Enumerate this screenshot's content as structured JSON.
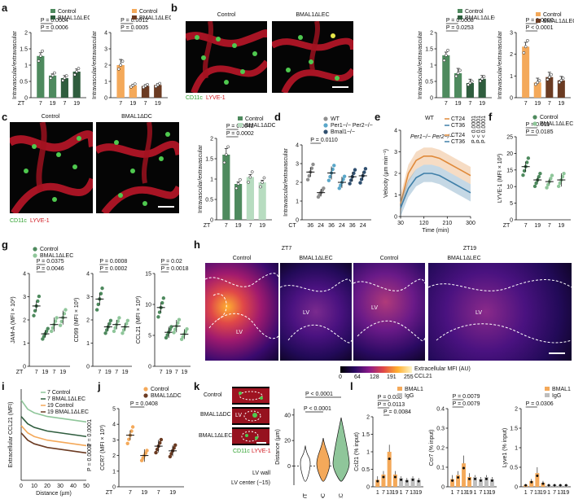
{
  "colors": {
    "control_green": "#4e8a5e",
    "bmal_lec_green": "#8fc69a",
    "dark_green": "#2f5d3e",
    "light_green": "#b7dcc0",
    "control_orange": "#f4a95a",
    "bmal_dc_brown": "#6b3b22",
    "wt_gray": "#8f8f8f",
    "per_blue": "#5aa7c9",
    "bmal_slate": "#2f4f6f",
    "ct24_orange": "#e08a3a",
    "ct36_blue": "#3f7fa8"
  },
  "panel_labels": {
    "a": "a",
    "b": "b",
    "c": "c",
    "d": "d",
    "e": "e",
    "f": "f",
    "g": "g",
    "h": "h",
    "i": "i",
    "j": "j",
    "k": "k",
    "l": "l"
  },
  "common": {
    "ylabel_iv": "Intravascular/extravascular",
    "zt": "ZT",
    "ct": "CT",
    "control": "Control",
    "bmal_lec": "BMAL1ΔLEC",
    "bmal_dc": "BMAL1ΔDC",
    "cd11c": "CD11c",
    "lyve1": "LYVE-1",
    "lv": "LV"
  },
  "micro_text": {
    "b_control": "Control",
    "b_bmal": "BMAL1ΔLEC",
    "c_control": "Control",
    "c_bmal": "BMAL1ΔDC",
    "h_zt7": "ZT7",
    "h_zt19": "ZT19",
    "h_control1": "Control",
    "h_bmal1": "BMAL1ΔLEC",
    "h_control2": "Control",
    "h_bmal2": "BMAL1ΔLEC",
    "h_colorbar_label1": "Extracellular MFI (AU)",
    "h_colorbar_label2": "CCL21",
    "h_colorbar_ticks": [
      "0",
      "64",
      "128",
      "191",
      "255"
    ],
    "k_control": "Control",
    "k_bmal_dc": "BMAL1ΔDC",
    "k_bmal_lec": "BMAL1ΔLEC",
    "k_lv": "LV"
  },
  "chart_data": [
    {
      "id": "a1",
      "type": "bar",
      "ylabel": "Intravascular/extravascular",
      "ylim": [
        0,
        2.0
      ],
      "yticks": [
        0,
        0.5,
        1.0,
        1.5,
        2.0
      ],
      "xtick_labels": [
        "7",
        "19",
        "7",
        "19"
      ],
      "x_prefix": "ZT",
      "values": [
        1.28,
        0.68,
        0.6,
        0.8
      ],
      "errors": [
        0.1,
        0.05,
        0.08,
        0.08
      ],
      "legend": [
        "Control",
        "BMAL1ΔLEC"
      ],
      "pvalues": [
        "P = 0.0004",
        "P = 0.0006"
      ]
    },
    {
      "id": "a2",
      "type": "bar",
      "ylabel": "Intravascular/extravascular",
      "ylim": [
        0,
        4
      ],
      "yticks": [
        0,
        1,
        2,
        3,
        4
      ],
      "xtick_labels": [
        "7",
        "19",
        "7",
        "19"
      ],
      "values": [
        2.0,
        0.75,
        0.72,
        0.78
      ],
      "errors": [
        0.35,
        0.07,
        0.08,
        0.08
      ],
      "legend": [
        "Control",
        "BMAL1ΔLEC"
      ],
      "pvalues": [
        "P = 0.0012",
        "P = 0.0005"
      ]
    },
    {
      "id": "b1",
      "type": "bar",
      "ylabel": "Intravascular/extravascular",
      "ylim": [
        0,
        2.0
      ],
      "yticks": [
        0,
        0.5,
        1.0,
        1.5,
        2.0
      ],
      "xtick_labels": [
        "7",
        "19",
        "7",
        "19"
      ],
      "values": [
        1.3,
        0.75,
        0.45,
        0.58
      ],
      "errors": [
        0.1,
        0.15,
        0.12,
        0.1
      ],
      "legend": [
        "Control",
        "BMAL1ΔLEC"
      ],
      "pvalues": [
        "P = 0.0008",
        "P = 0.0253"
      ]
    },
    {
      "id": "b2",
      "type": "bar",
      "ylabel": "Intravascular/extravascular",
      "ylim": [
        0,
        3
      ],
      "yticks": [
        0,
        1,
        2,
        3
      ],
      "xtick_labels": [
        "7",
        "19",
        "7",
        "19"
      ],
      "values": [
        2.35,
        0.7,
        0.95,
        0.8
      ],
      "errors": [
        0.2,
        0.2,
        0.22,
        0.18
      ],
      "legend": [
        "Control",
        "BMAL1ΔLEC"
      ],
      "pvalues": [
        "P = 0.0007",
        "P < 0.0001"
      ]
    },
    {
      "id": "c1",
      "type": "bar",
      "ylabel": "Intravascular/extravascular",
      "ylim": [
        0,
        2.0
      ],
      "yticks": [
        0,
        0.5,
        1.0,
        1.5,
        2.0
      ],
      "xtick_labels": [
        "7",
        "19",
        "7",
        "19"
      ],
      "x_prefix": "ZT",
      "values": [
        1.6,
        0.88,
        1.05,
        0.92
      ],
      "errors": [
        0.15,
        0.05,
        0.06,
        0.05
      ],
      "legend": [
        "Control",
        "BMAL1ΔDC"
      ],
      "pvalues": [
        "P = 0.0042",
        "P = 0.0002"
      ]
    },
    {
      "id": "d",
      "type": "scatter",
      "ylabel": "Intravascular/extravascular",
      "ylim": [
        0,
        4
      ],
      "yticks": [
        0,
        1,
        2,
        3,
        4
      ],
      "xtick_labels": [
        "36",
        "24",
        "36",
        "24",
        "36",
        "24"
      ],
      "x_prefix": "CT",
      "values": [
        2.55,
        1.45,
        2.5,
        2.0,
        2.3,
        2.35
      ],
      "errors": [
        0.25,
        0.2,
        0.35,
        0.3,
        0.25,
        0.2
      ],
      "legend": [
        "WT",
        "Per1−/− Per2−/−",
        "Bmal1−/−"
      ],
      "pvalues": [
        "P = 0.0110"
      ]
    },
    {
      "id": "e",
      "type": "line",
      "xlabel": "Time (min)",
      "ylabel": "Velocity (µm min⁻¹)",
      "xlim": [
        30,
        300
      ],
      "ylim": [
        0,
        4
      ],
      "xticks": [
        30,
        120,
        210,
        300
      ],
      "yticks": [
        0,
        1,
        2,
        3,
        4
      ],
      "legend": [
        "CT24",
        "CT36",
        "CT24",
        "CT36"
      ],
      "group_labels": [
        "WT",
        "Per1−/− Per2−/−"
      ],
      "pvalues": [
        "P < 0.0001",
        "P < 0.0001",
        "P < 0.0001"
      ],
      "series": [
        {
          "name": "CT24",
          "x": [
            30,
            60,
            90,
            120,
            150,
            180,
            210,
            240,
            270,
            300
          ],
          "y": [
            0.6,
            2.0,
            2.6,
            2.8,
            2.8,
            2.7,
            2.5,
            2.3,
            2.1,
            1.9
          ]
        },
        {
          "name": "CT36",
          "x": [
            30,
            60,
            90,
            120,
            150,
            180,
            210,
            240,
            270,
            300
          ],
          "y": [
            0.4,
            1.3,
            1.8,
            2.0,
            2.0,
            1.9,
            1.7,
            1.5,
            1.3,
            1.1
          ]
        }
      ]
    },
    {
      "id": "f",
      "type": "scatter",
      "ylabel": "LYVE-1 (MFI × 10³)",
      "ylim": [
        0,
        25
      ],
      "yticks": [
        0,
        5,
        10,
        15,
        20,
        25
      ],
      "xtick_labels": [
        "7",
        "19",
        "7",
        "19"
      ],
      "x_prefix": "ZT",
      "values": [
        16.0,
        12.0,
        11.5,
        12.0
      ],
      "errors": [
        1.5,
        0.8,
        0.8,
        2.0
      ],
      "legend": [
        "Control",
        "BMAL1ΔLEC"
      ],
      "pvalues": [
        "P = 0.011",
        "P = 0.0185"
      ]
    },
    {
      "id": "g1",
      "type": "scatter",
      "ylabel": "JAM-A (MFI × 10³)",
      "ylim": [
        0,
        4
      ],
      "yticks": [
        0,
        1,
        2,
        3,
        4
      ],
      "xtick_labels": [
        "7",
        "19",
        "7",
        "19"
      ],
      "x_prefix": "ZT",
      "values": [
        2.6,
        1.4,
        1.8,
        2.1
      ],
      "errors": [
        0.2,
        0.15,
        0.3,
        0.3
      ],
      "legend": [
        "Control",
        "BMAL1ΔLEC"
      ],
      "pvalues": [
        "P = 0.0375",
        "P = 0.0046"
      ]
    },
    {
      "id": "g2",
      "type": "scatter",
      "ylabel": "CD99 (MFI × 10³)",
      "ylim": [
        0,
        4
      ],
      "yticks": [
        0,
        1,
        2,
        3,
        4
      ],
      "xtick_labels": [
        "7",
        "19",
        "7",
        "19"
      ],
      "values": [
        2.9,
        1.7,
        1.8,
        1.7
      ],
      "errors": [
        0.25,
        0.15,
        0.2,
        0.15
      ],
      "pvalues": [
        "P = 0.0008",
        "P = 0.0002"
      ]
    },
    {
      "id": "g3",
      "type": "scatter",
      "ylabel": "CCL21 (MFI × 10³)",
      "ylim": [
        0,
        15
      ],
      "yticks": [
        0,
        5,
        10,
        15
      ],
      "xtick_labels": [
        "7",
        "19",
        "7",
        "19"
      ],
      "values": [
        9.5,
        5.5,
        6.5,
        5.2
      ],
      "errors": [
        0.8,
        0.9,
        1.0,
        0.8
      ],
      "pvalues": [
        "P = 0.02",
        "P = 0.0018"
      ]
    },
    {
      "id": "i",
      "type": "line",
      "xlabel": "Distance (µm)",
      "ylabel": "Extracellular CCL21 (MFI)",
      "xlim": [
        0,
        50
      ],
      "ylim": [
        0,
        5
      ],
      "xticks": [
        0,
        10,
        20,
        30,
        40,
        50
      ],
      "pvalues": [
        "P = 0.0001",
        "P = 0.0001"
      ],
      "series": [
        {
          "name": "7 Control",
          "x": [
            0,
            5,
            10,
            20,
            30,
            40,
            50
          ],
          "y": [
            4.4,
            3.9,
            3.7,
            3.5,
            3.4,
            3.3,
            3.2
          ]
        },
        {
          "name": "7 BMAL1ΔLEC",
          "x": [
            0,
            5,
            10,
            20,
            30,
            40,
            50
          ],
          "y": [
            3.5,
            3.1,
            2.9,
            2.7,
            2.6,
            2.5,
            2.4
          ]
        },
        {
          "name": "19 Control",
          "x": [
            0,
            5,
            10,
            20,
            30,
            40,
            50
          ],
          "y": [
            3.0,
            2.6,
            2.4,
            2.2,
            2.1,
            2.0,
            1.9
          ]
        },
        {
          "name": "19 BMAL1ΔLEC",
          "x": [
            0,
            5,
            10,
            20,
            30,
            40,
            50
          ],
          "y": [
            2.6,
            2.2,
            2.0,
            1.8,
            1.7,
            1.6,
            1.5
          ]
        }
      ]
    },
    {
      "id": "j",
      "type": "scatter",
      "ylabel": "CCR7 (MFI × 10³)",
      "ylim": [
        0,
        5
      ],
      "yticks": [
        0,
        1,
        2,
        3,
        4,
        5
      ],
      "xtick_labels": [
        "7",
        "19",
        "7",
        "19"
      ],
      "x_prefix": "ZT",
      "values": [
        3.3,
        2.0,
        2.6,
        2.3
      ],
      "errors": [
        0.3,
        0.4,
        0.4,
        0.35
      ],
      "legend": [
        "Control",
        "BMAL1ΔDC"
      ],
      "pvalues": [
        "P = 0.0408"
      ]
    },
    {
      "id": "k",
      "type": "violin",
      "ylabel": "Distance (µm)",
      "ylim": [
        -15,
        45
      ],
      "yticks": [
        0,
        20,
        40
      ],
      "categories": [
        "WT",
        "cDC",
        "LEC"
      ],
      "ref_labels": [
        "LV wall",
        "LV center (−15)"
      ],
      "pvalues": [
        "P < 0.0001",
        "P < 0.0001"
      ]
    },
    {
      "id": "l1",
      "type": "bar",
      "ylabel": "Ccl21 (% input)",
      "ylim": [
        0,
        2.0
      ],
      "yticks": [
        0,
        0.5,
        1.0,
        1.5,
        2.0
      ],
      "xtick_labels": [
        "1",
        "7",
        "13",
        "19",
        "1",
        "7",
        "13",
        "19"
      ],
      "values": [
        0.2,
        0.35,
        1.0,
        0.35,
        0.25,
        0.2,
        0.25,
        0.2
      ],
      "errors": [
        0.1,
        0.1,
        0.2,
        0.1,
        0.05,
        0.05,
        0.05,
        0.05
      ],
      "legend": [
        "BMAL1",
        "IgG"
      ],
      "pvalues": [
        "P = 0.038",
        "P = 0.0113",
        "P = 0.0084"
      ]
    },
    {
      "id": "l2",
      "type": "bar",
      "ylabel": "Ccr7 (% input)",
      "ylim": [
        0,
        0.4
      ],
      "yticks": [
        0,
        0.1,
        0.2,
        0.3,
        0.4
      ],
      "xtick_labels": [
        "1",
        "7",
        "13",
        "19",
        "1",
        "7",
        "13",
        "19"
      ],
      "values": [
        0.04,
        0.06,
        0.12,
        0.05,
        0.05,
        0.04,
        0.05,
        0.04
      ],
      "errors": [
        0.02,
        0.02,
        0.04,
        0.02,
        0.01,
        0.01,
        0.01,
        0.01
      ],
      "pvalues": [
        "P = 0.0079",
        "P = 0.0079"
      ]
    },
    {
      "id": "l3",
      "type": "bar",
      "ylabel": "Lyve1 (% input)",
      "ylim": [
        0,
        2.0
      ],
      "yticks": [
        0,
        0.5,
        1.0,
        1.5,
        2.0
      ],
      "xtick_labels": [
        "1",
        "7",
        "13",
        "19",
        "1",
        "7",
        "13",
        "19"
      ],
      "values": [
        0.05,
        0.15,
        0.35,
        0.1,
        0.05,
        0.05,
        0.05,
        0.05
      ],
      "errors": [
        0.02,
        0.05,
        0.15,
        0.05,
        0.02,
        0.02,
        0.02,
        0.02
      ],
      "legend": [
        "BMAL1",
        "IgG"
      ],
      "pvalues": [
        "P = 0.0306"
      ]
    }
  ]
}
